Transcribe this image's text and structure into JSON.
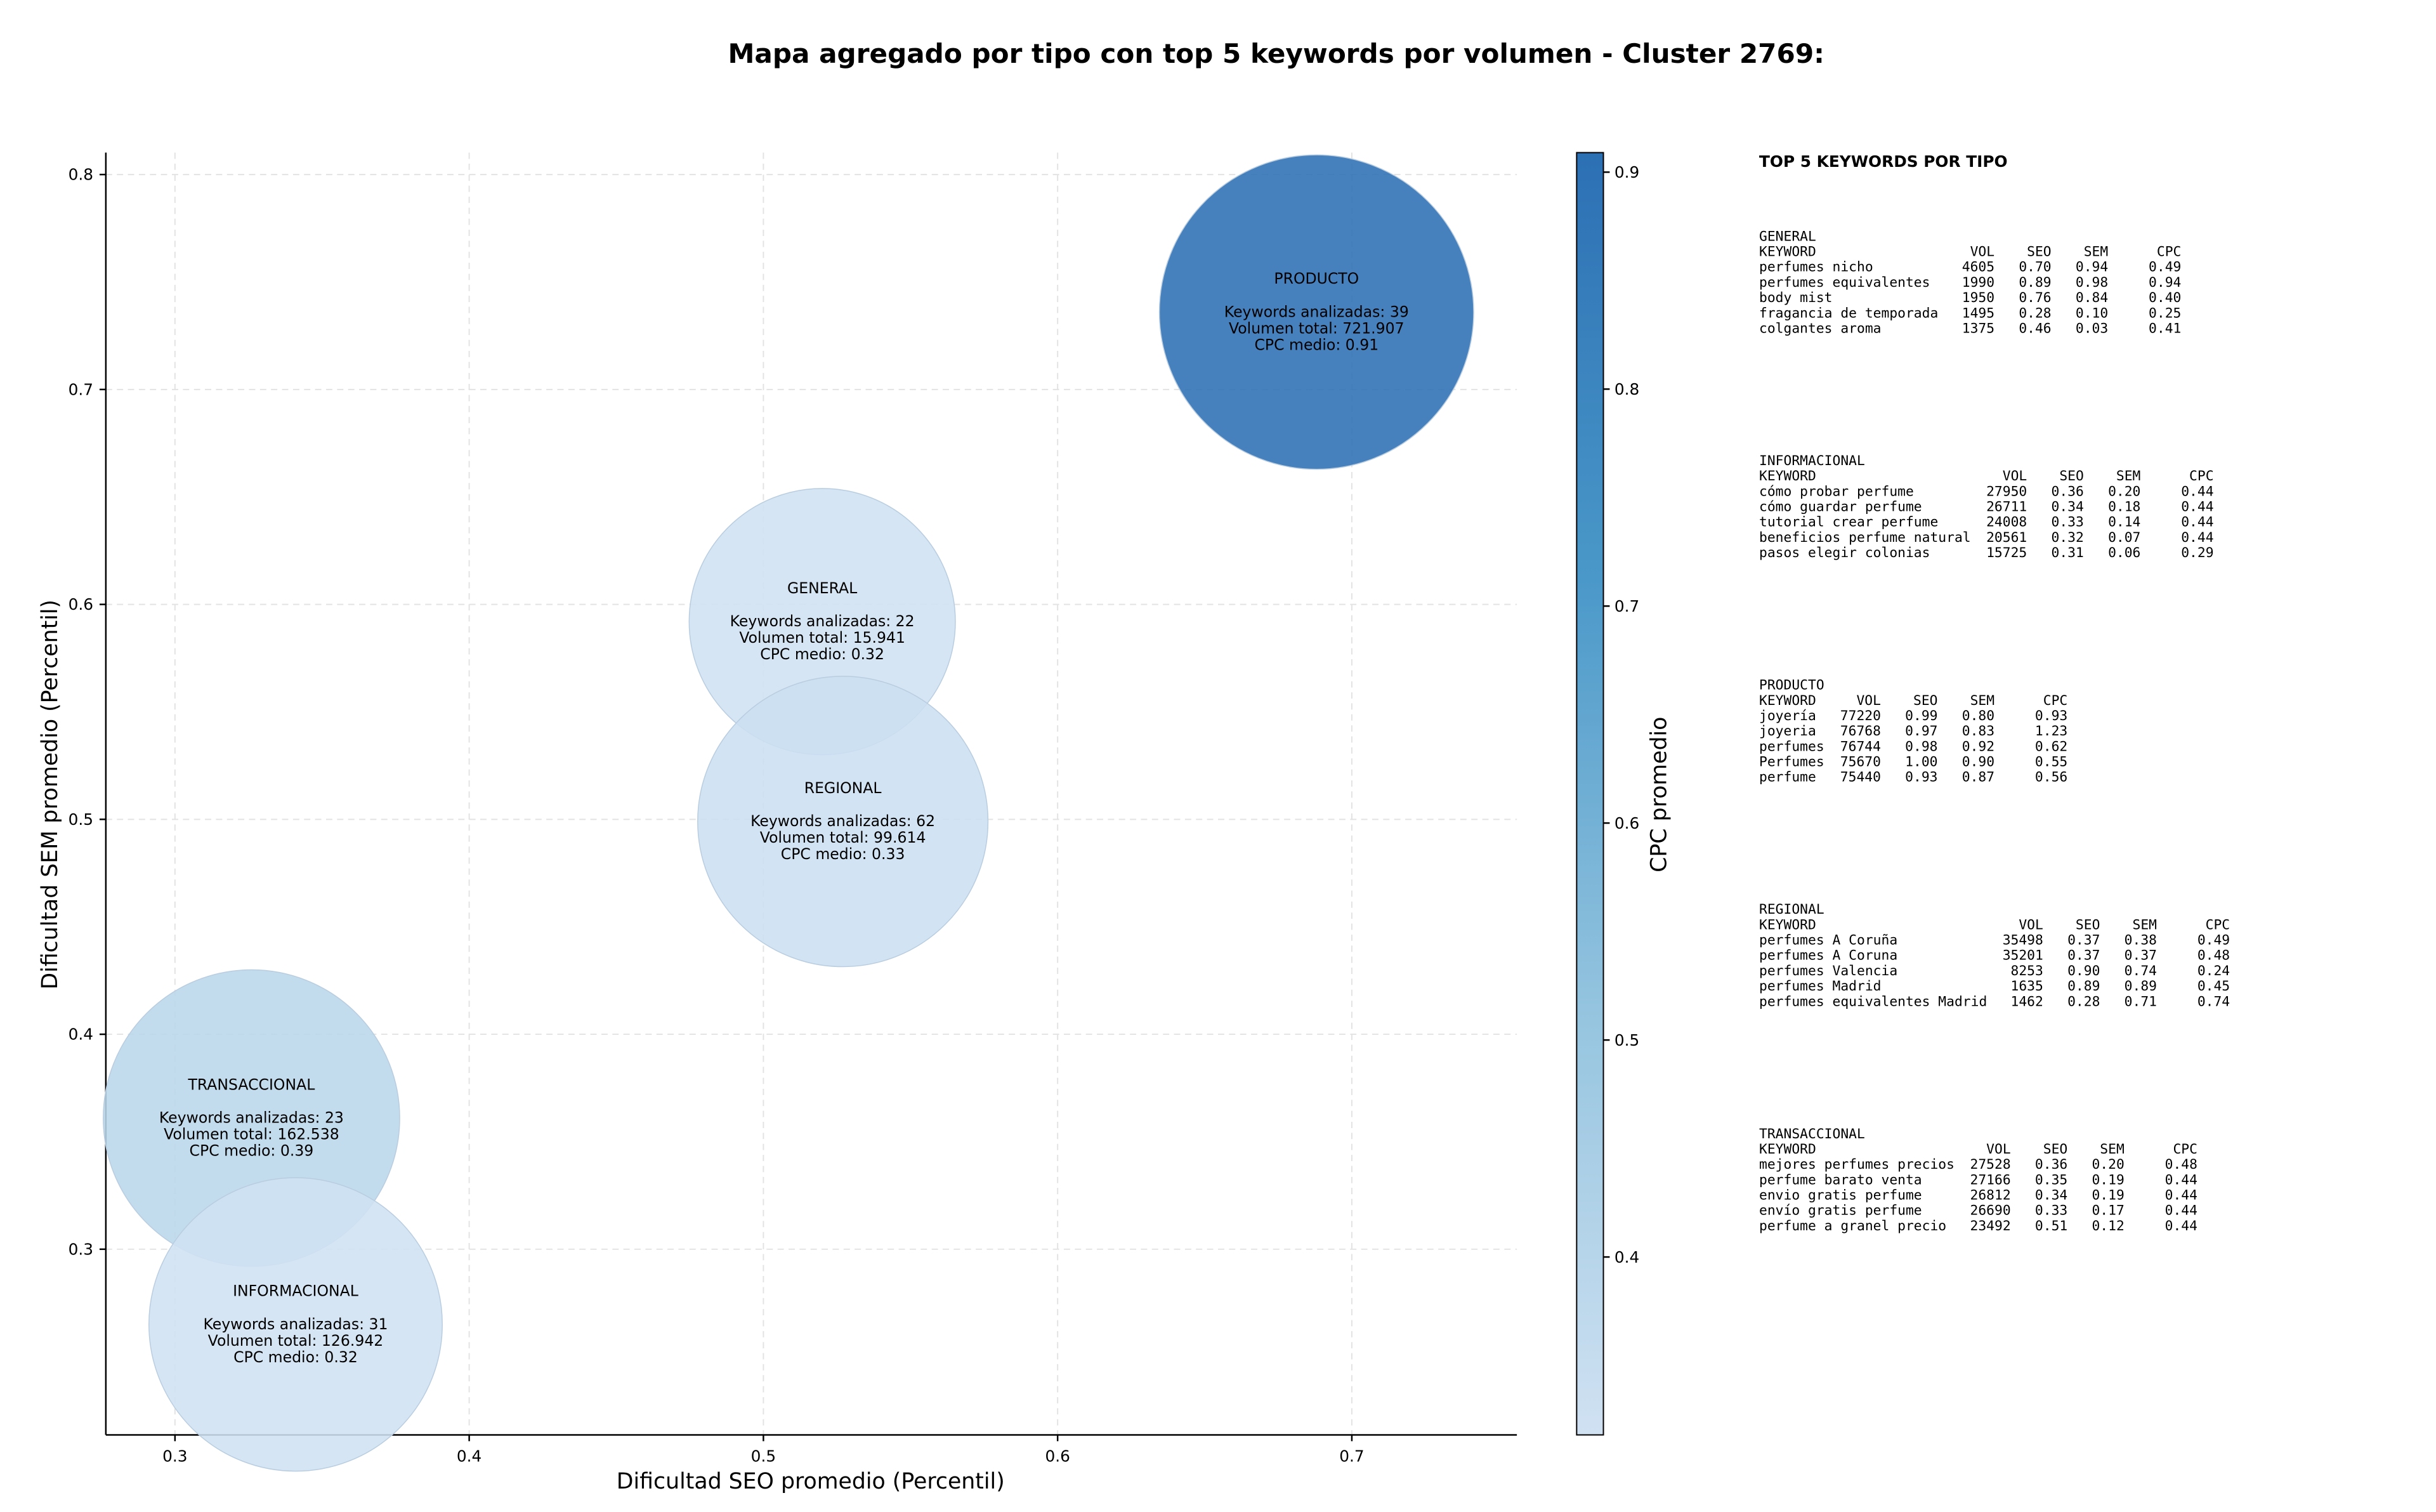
{
  "chart_data": {
    "type": "bubble",
    "title": "Mapa agregado por tipo con top 5 keywords por volumen - Cluster 2769:",
    "x_label": "Dificultad SEO promedio (Percentil)",
    "y_label": "Dificultad SEM promedio (Percentil)",
    "xlim": [
      0.2765,
      0.7561
    ],
    "xticks": [
      0.3,
      0.4,
      0.5,
      0.6,
      0.7
    ],
    "ylim": [
      0.2136,
      0.8102
    ],
    "yticks": [
      0.3,
      0.4,
      0.5,
      0.6,
      0.7,
      0.8
    ],
    "grid": true,
    "colorbar": {
      "label": "CPC promedio",
      "lim": [
        0.318,
        0.909
      ],
      "ticks": [
        0.4,
        0.5,
        0.6,
        0.7,
        0.8,
        0.9
      ],
      "colors": [
        "#d0e1f2",
        "#94c4df",
        "#4a98c9",
        "#2c70b4"
      ]
    },
    "points": [
      {
        "name": "GENERAL",
        "x": 0.52,
        "y": 0.592,
        "volume": 15941,
        "cpc": 0.32,
        "lines": [
          "Keywords analizadas: 22",
          "Volumen total: 15.941",
          "CPC medio: 0.32"
        ]
      },
      {
        "name": "PRODUCTO",
        "x": 0.688,
        "y": 0.736,
        "volume": 721907,
        "cpc": 0.91,
        "lines": [
          "Keywords analizadas: 39",
          "Volumen total: 721.907",
          "CPC medio: 0.91"
        ]
      },
      {
        "name": "REGIONAL",
        "x": 0.527,
        "y": 0.499,
        "volume": 99614,
        "cpc": 0.33,
        "lines": [
          "Keywords analizadas: 62",
          "Volumen total: 99.614",
          "CPC medio: 0.33"
        ]
      },
      {
        "name": "TRANSACCIONAL",
        "x": 0.326,
        "y": 0.361,
        "volume": 162538,
        "cpc": 0.39,
        "lines": [
          "Keywords analizadas: 23",
          "Volumen total: 162.538",
          "CPC medio: 0.39"
        ]
      },
      {
        "name": "INFORMACIONAL",
        "x": 0.341,
        "y": 0.265,
        "volume": 126942,
        "cpc": 0.32,
        "lines": [
          "Keywords analizadas: 31",
          "Volumen total: 126.942",
          "CPC medio: 0.32"
        ]
      }
    ]
  },
  "side_panel": {
    "title": "TOP 5 KEYWORDS POR TIPO",
    "header": [
      "KEYWORD",
      "VOL",
      "SEO",
      "SEM",
      "CPC"
    ],
    "blocks": [
      {
        "name": "GENERAL",
        "rows": [
          [
            "perfumes nicho",
            "4605",
            "0.70",
            "0.94",
            "0.49"
          ],
          [
            "perfumes equivalentes",
            "1990",
            "0.89",
            "0.98",
            "0.94"
          ],
          [
            "body mist",
            "1950",
            "0.76",
            "0.84",
            "0.40"
          ],
          [
            "fragancia de temporada",
            "1495",
            "0.28",
            "0.10",
            "0.25"
          ],
          [
            "colgantes aroma",
            "1375",
            "0.46",
            "0.03",
            "0.41"
          ]
        ]
      },
      {
        "name": "INFORMACIONAL",
        "rows": [
          [
            "cómo probar perfume",
            "27950",
            "0.36",
            "0.20",
            "0.44"
          ],
          [
            "cómo guardar perfume",
            "26711",
            "0.34",
            "0.18",
            "0.44"
          ],
          [
            "tutorial crear perfume",
            "24008",
            "0.33",
            "0.14",
            "0.44"
          ],
          [
            "beneficios perfume natural",
            "20561",
            "0.32",
            "0.07",
            "0.44"
          ],
          [
            "pasos elegir colonias",
            "15725",
            "0.31",
            "0.06",
            "0.29"
          ]
        ]
      },
      {
        "name": "PRODUCTO",
        "rows": [
          [
            "joyería",
            "77220",
            "0.99",
            "0.80",
            "0.93"
          ],
          [
            "joyeria",
            "76768",
            "0.97",
            "0.83",
            "1.23"
          ],
          [
            "perfumes",
            "76744",
            "0.98",
            "0.92",
            "0.62"
          ],
          [
            "Perfumes",
            "75670",
            "1.00",
            "0.90",
            "0.55"
          ],
          [
            "perfume",
            "75440",
            "0.93",
            "0.87",
            "0.56"
          ]
        ]
      },
      {
        "name": "REGIONAL",
        "rows": [
          [
            "perfumes A Coruña",
            "35498",
            "0.37",
            "0.38",
            "0.49"
          ],
          [
            "perfumes A Coruna",
            "35201",
            "0.37",
            "0.37",
            "0.48"
          ],
          [
            "perfumes Valencia",
            "8253",
            "0.90",
            "0.74",
            "0.24"
          ],
          [
            "perfumes Madrid",
            "1635",
            "0.89",
            "0.89",
            "0.45"
          ],
          [
            "perfumes equivalentes Madrid",
            "1462",
            "0.28",
            "0.71",
            "0.74"
          ]
        ]
      },
      {
        "name": "TRANSACCIONAL",
        "rows": [
          [
            "mejores perfumes precios",
            "27528",
            "0.36",
            "0.20",
            "0.48"
          ],
          [
            "perfume barato venta",
            "27166",
            "0.35",
            "0.19",
            "0.44"
          ],
          [
            "envio gratis perfume",
            "26812",
            "0.34",
            "0.19",
            "0.44"
          ],
          [
            "envío gratis perfume",
            "26690",
            "0.33",
            "0.17",
            "0.44"
          ],
          [
            "perfume a granel precio",
            "23492",
            "0.51",
            "0.12",
            "0.44"
          ]
        ]
      }
    ]
  }
}
